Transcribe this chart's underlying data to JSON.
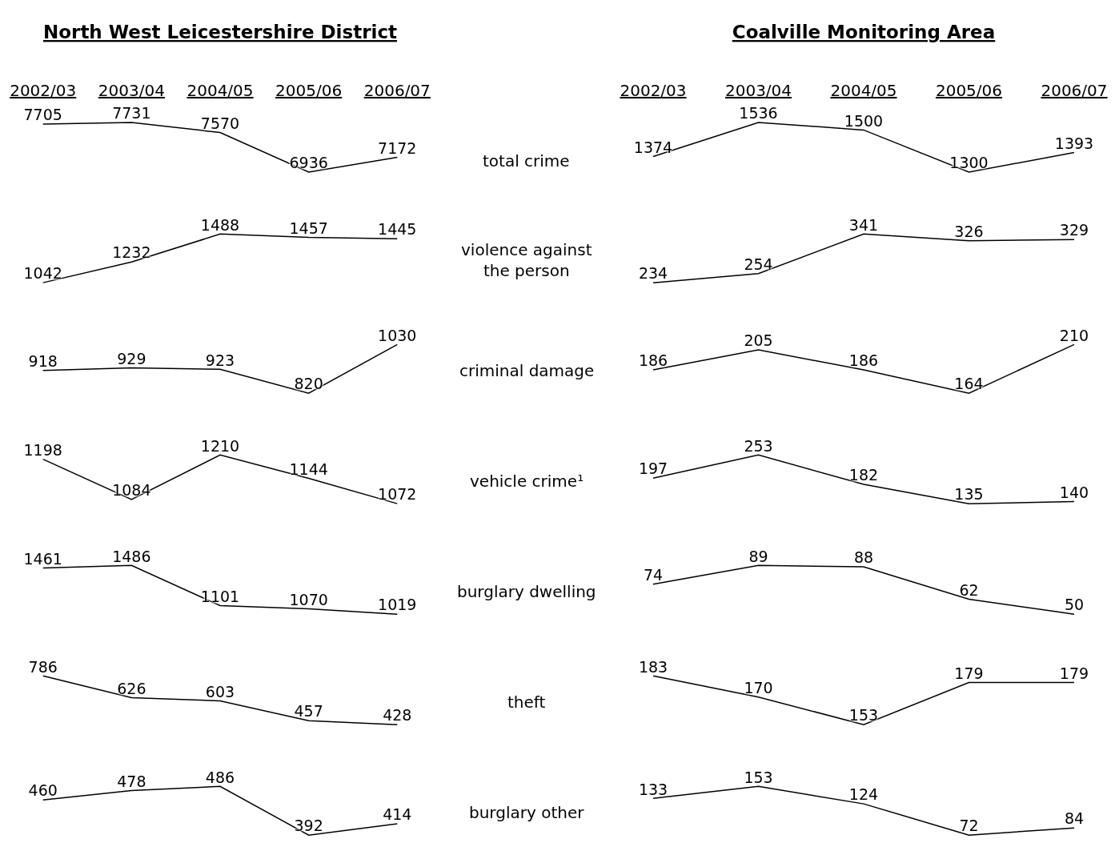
{
  "chart_data": [
    {
      "type": "line",
      "title": "North West Leicestershire District",
      "categories": [
        "2002/03",
        "2003/04",
        "2004/05",
        "2005/06",
        "2006/07"
      ],
      "values": [
        7705,
        7731,
        7570,
        6936,
        7172
      ],
      "color": "#000000",
      "data_labels": true,
      "tick_labels": "x",
      "annotations": [
        "total crime"
      ]
    },
    {
      "type": "line",
      "title": "Coalville Monitoring Area",
      "categories": [
        "2002/03",
        "2003/04",
        "2004/05",
        "2005/06",
        "2006/07"
      ],
      "values": [
        1374,
        1536,
        1500,
        1300,
        1393
      ],
      "color": "#000000",
      "data_labels": true,
      "tick_labels": "x"
    },
    {
      "type": "line",
      "categories": [
        "2002/03",
        "2003/04",
        "2004/05",
        "2005/06",
        "2006/07"
      ],
      "values": [
        1042,
        1232,
        1488,
        1457,
        1445
      ],
      "color": "#000000",
      "data_labels": true,
      "tick_labels": false,
      "annotations": [
        "violence against the person"
      ]
    },
    {
      "type": "line",
      "categories": [
        "2002/03",
        "2003/04",
        "2004/05",
        "2005/06",
        "2006/07"
      ],
      "values": [
        234,
        254,
        341,
        326,
        329
      ],
      "color": "#000000",
      "data_labels": true,
      "tick_labels": false
    },
    {
      "type": "line",
      "categories": [
        "2002/03",
        "2003/04",
        "2004/05",
        "2005/06",
        "2006/07"
      ],
      "values": [
        918,
        929,
        923,
        820,
        1030
      ],
      "color": "#000000",
      "data_labels": true,
      "tick_labels": false,
      "annotations": [
        "criminal damage"
      ]
    },
    {
      "type": "line",
      "categories": [
        "2002/03",
        "2003/04",
        "2004/05",
        "2005/06",
        "2006/07"
      ],
      "values": [
        186,
        205,
        186,
        164,
        210
      ],
      "color": "#000000",
      "data_labels": true,
      "tick_labels": false
    },
    {
      "type": "line",
      "categories": [
        "2002/03",
        "2003/04",
        "2004/05",
        "2005/06",
        "2006/07"
      ],
      "values": [
        1198,
        1084,
        1210,
        1144,
        1072
      ],
      "color": "#000000",
      "data_labels": true,
      "tick_labels": false,
      "annotations": [
        "vehicle crime¹"
      ]
    },
    {
      "type": "line",
      "categories": [
        "2002/03",
        "2003/04",
        "2004/05",
        "2005/06",
        "2006/07"
      ],
      "values": [
        197,
        253,
        182,
        135,
        140
      ],
      "color": "#000000",
      "data_labels": true,
      "tick_labels": false
    },
    {
      "type": "line",
      "categories": [
        "2002/03",
        "2003/04",
        "2004/05",
        "2005/06",
        "2006/07"
      ],
      "values": [
        1461,
        1486,
        1101,
        1070,
        1019
      ],
      "color": "#000000",
      "data_labels": true,
      "tick_labels": false,
      "annotations": [
        "burglary dwelling"
      ]
    },
    {
      "type": "line",
      "categories": [
        "2002/03",
        "2003/04",
        "2004/05",
        "2005/06",
        "2006/07"
      ],
      "values": [
        74,
        89,
        88,
        62,
        50
      ],
      "color": "#000000",
      "data_labels": true,
      "tick_labels": false
    },
    {
      "type": "line",
      "categories": [
        "2002/03",
        "2003/04",
        "2004/05",
        "2005/06",
        "2006/07"
      ],
      "values": [
        786,
        626,
        603,
        457,
        428
      ],
      "color": "#000000",
      "data_labels": true,
      "tick_labels": false,
      "annotations": [
        "theft"
      ]
    },
    {
      "type": "line",
      "categories": [
        "2002/03",
        "2003/04",
        "2004/05",
        "2005/06",
        "2006/07"
      ],
      "values": [
        183,
        170,
        153,
        179,
        179
      ],
      "color": "#000000",
      "data_labels": true,
      "tick_labels": false
    },
    {
      "type": "line",
      "categories": [
        "2002/03",
        "2003/04",
        "2004/05",
        "2005/06",
        "2006/07"
      ],
      "values": [
        460,
        478,
        486,
        392,
        414
      ],
      "color": "#000000",
      "data_labels": true,
      "tick_labels": false,
      "annotations": [
        "burglary other"
      ]
    },
    {
      "type": "line",
      "categories": [
        "2002/03",
        "2003/04",
        "2004/05",
        "2005/06",
        "2006/07"
      ],
      "values": [
        133,
        153,
        124,
        72,
        84
      ],
      "color": "#000000",
      "data_labels": true,
      "tick_labels": false
    }
  ]
}
